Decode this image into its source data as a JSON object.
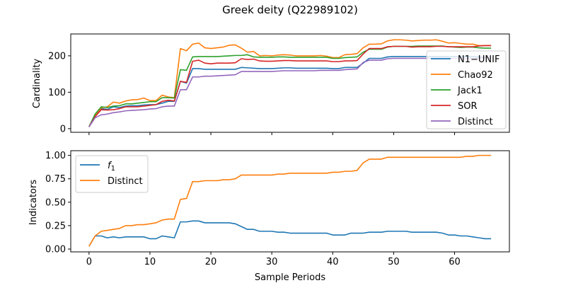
{
  "figure": {
    "title": "Greek deity (Q22989102)"
  },
  "chart_data": [
    {
      "type": "line",
      "ylabel": "Cardinality",
      "xlabel": "",
      "xlim": [
        -3,
        69
      ],
      "ylim": [
        -10,
        260
      ],
      "xticks": [
        0,
        10,
        20,
        30,
        40,
        50,
        60
      ],
      "yticks": [
        0,
        100,
        200
      ],
      "legend_position": "right",
      "series": [
        {
          "name": "N1−UNIF",
          "color": "#1f77b4",
          "values": [
            5,
            35,
            55,
            53,
            60,
            58,
            62,
            63,
            63,
            65,
            66,
            66,
            70,
            75,
            75,
            130,
            125,
            165,
            165,
            163,
            163,
            163,
            163,
            163,
            163,
            168,
            167,
            166,
            165,
            165,
            165,
            166,
            167,
            167,
            166,
            166,
            166,
            166,
            166,
            166,
            165,
            165,
            168,
            168,
            168,
            180,
            193,
            193,
            193,
            197,
            198,
            198,
            198,
            198,
            198,
            198,
            198,
            198,
            198,
            198,
            198,
            198,
            198,
            198,
            197,
            195,
            195
          ]
        },
        {
          "name": "Chao92",
          "color": "#ff7f0e",
          "values": [
            5,
            38,
            57,
            60,
            73,
            70,
            76,
            79,
            80,
            84,
            77,
            77,
            92,
            87,
            85,
            220,
            214,
            232,
            235,
            222,
            220,
            222,
            224,
            229,
            230,
            221,
            210,
            212,
            200,
            201,
            200,
            202,
            203,
            202,
            200,
            200,
            200,
            200,
            201,
            199,
            195,
            195,
            203,
            204,
            206,
            222,
            232,
            232,
            233,
            241,
            244,
            244,
            243,
            241,
            242,
            243,
            243,
            244,
            240,
            235,
            236,
            234,
            232,
            232,
            228,
            228,
            228
          ]
        },
        {
          "name": "Jack1",
          "color": "#2ca02c",
          "values": [
            5,
            40,
            60,
            58,
            62,
            63,
            68,
            68,
            70,
            72,
            74,
            74,
            85,
            85,
            84,
            162,
            160,
            197,
            198,
            198,
            198,
            198,
            199,
            200,
            201,
            201,
            203,
            197,
            196,
            196,
            196,
            197,
            197,
            196,
            196,
            196,
            196,
            196,
            196,
            196,
            193,
            193,
            195,
            196,
            197,
            210,
            218,
            218,
            218,
            224,
            226,
            226,
            226,
            226,
            227,
            227,
            227,
            227,
            227,
            225,
            224,
            223,
            224,
            224,
            222,
            221,
            221
          ]
        },
        {
          "name": "SOR",
          "color": "#d62728",
          "values": [
            5,
            33,
            52,
            51,
            52,
            55,
            60,
            60,
            60,
            62,
            64,
            66,
            75,
            78,
            76,
            130,
            127,
            185,
            188,
            180,
            178,
            180,
            180,
            180,
            181,
            192,
            190,
            191,
            186,
            185,
            185,
            186,
            187,
            187,
            186,
            186,
            186,
            186,
            186,
            186,
            184,
            184,
            186,
            186,
            187,
            205,
            220,
            220,
            220,
            225,
            226,
            226,
            226,
            224,
            225,
            225,
            225,
            226,
            226,
            225,
            225,
            225,
            225,
            225,
            227,
            228,
            228
          ]
        },
        {
          "name": "Distinct",
          "color": "#9467bd",
          "values": [
            5,
            30,
            38,
            40,
            44,
            46,
            49,
            50,
            51,
            52,
            54,
            55,
            60,
            62,
            62,
            107,
            107,
            142,
            142,
            144,
            144,
            145,
            146,
            147,
            148,
            157,
            157,
            157,
            157,
            157,
            157,
            158,
            159,
            159,
            159,
            159,
            159,
            159,
            160,
            160,
            160,
            160,
            162,
            163,
            164,
            182,
            188,
            188,
            188,
            192,
            193,
            193,
            193,
            193,
            193,
            193,
            193,
            193,
            193,
            193,
            193,
            193,
            193,
            193,
            194,
            195,
            195
          ]
        }
      ]
    },
    {
      "type": "line",
      "ylabel": "Indicators",
      "xlabel": "Sample Periods",
      "xlim": [
        -3,
        69
      ],
      "ylim": [
        -0.03,
        1.05
      ],
      "xticks": [
        0,
        10,
        20,
        30,
        40,
        50,
        60
      ],
      "yticks": [
        0.0,
        0.25,
        0.5,
        0.75,
        1.0
      ],
      "ytick_labels": [
        "0.00",
        "0.25",
        "0.50",
        "0.75",
        "1.00"
      ],
      "xtick_labels": [
        "0",
        "10",
        "20",
        "30",
        "40",
        "50",
        "60"
      ],
      "legend_position": "upper left",
      "series": [
        {
          "name": "f",
          "subscript": "1",
          "color": "#1f77b4",
          "values": [
            0.03,
            0.14,
            0.14,
            0.12,
            0.13,
            0.12,
            0.13,
            0.13,
            0.13,
            0.13,
            0.11,
            0.11,
            0.14,
            0.13,
            0.12,
            0.29,
            0.29,
            0.3,
            0.3,
            0.28,
            0.28,
            0.28,
            0.28,
            0.28,
            0.27,
            0.24,
            0.21,
            0.21,
            0.19,
            0.19,
            0.19,
            0.18,
            0.18,
            0.17,
            0.17,
            0.17,
            0.17,
            0.17,
            0.17,
            0.17,
            0.15,
            0.15,
            0.15,
            0.17,
            0.17,
            0.17,
            0.18,
            0.18,
            0.18,
            0.19,
            0.19,
            0.19,
            0.19,
            0.18,
            0.18,
            0.18,
            0.18,
            0.18,
            0.17,
            0.15,
            0.15,
            0.14,
            0.14,
            0.13,
            0.12,
            0.11,
            0.11
          ]
        },
        {
          "name": "Distinct",
          "color": "#ff7f0e",
          "values": [
            0.03,
            0.14,
            0.19,
            0.2,
            0.21,
            0.22,
            0.25,
            0.25,
            0.26,
            0.26,
            0.27,
            0.28,
            0.31,
            0.32,
            0.32,
            0.53,
            0.54,
            0.72,
            0.72,
            0.73,
            0.73,
            0.73,
            0.74,
            0.74,
            0.75,
            0.79,
            0.79,
            0.79,
            0.79,
            0.79,
            0.79,
            0.8,
            0.8,
            0.81,
            0.81,
            0.81,
            0.81,
            0.81,
            0.81,
            0.81,
            0.82,
            0.82,
            0.83,
            0.83,
            0.84,
            0.92,
            0.96,
            0.96,
            0.96,
            0.98,
            0.98,
            0.98,
            0.98,
            0.98,
            0.98,
            0.98,
            0.98,
            0.98,
            0.98,
            0.98,
            0.98,
            0.98,
            0.99,
            0.99,
            1.0,
            1.0,
            1.0
          ]
        }
      ]
    }
  ]
}
